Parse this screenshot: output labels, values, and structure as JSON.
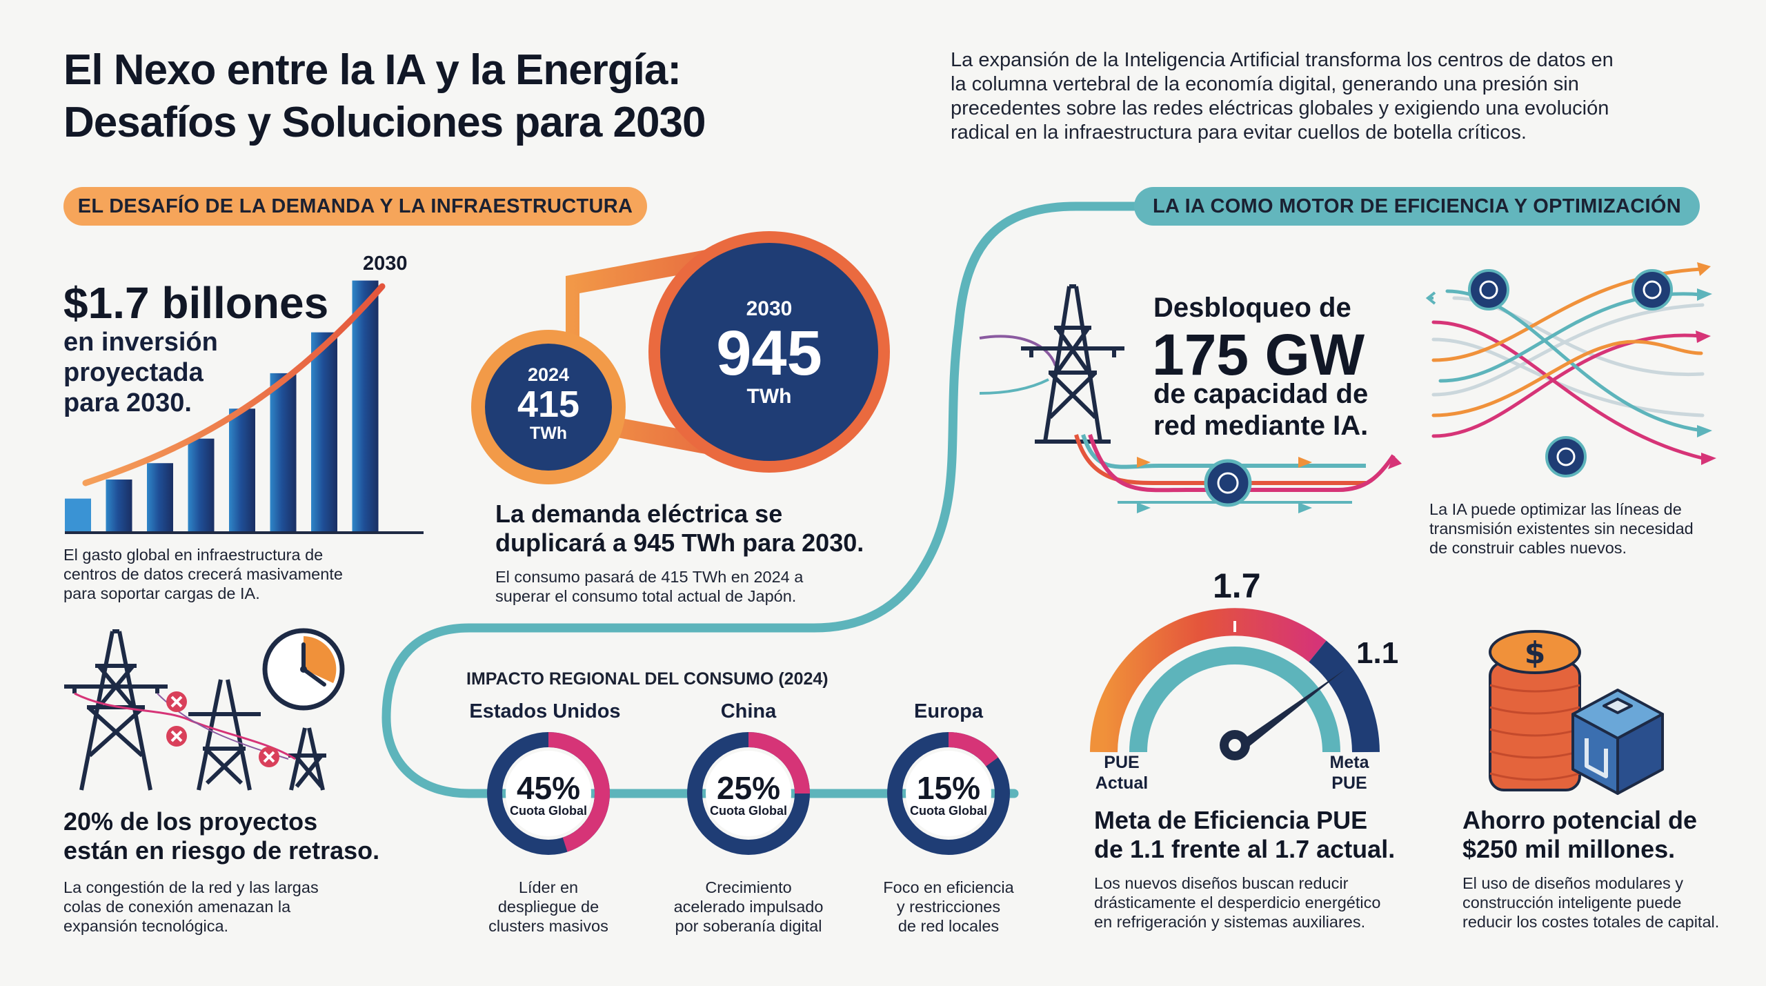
{
  "header": {
    "title_line1": "El Nexo entre la IA y la Energía:",
    "title_line2": "Desafíos y Soluciones para 2030",
    "intro_line1": "La expansión de la Inteligencia Artificial transforma los centros de datos en",
    "intro_line2": "la columna vertebral de la economía digital, generando una presión sin",
    "intro_line3": "precedentes sobre las redes eléctricas globales y exigiendo una evolución",
    "intro_line4": "radical en la infraestructura para evitar cuellos de botella críticos."
  },
  "sections": {
    "demand": "EL DESAFÍO DE LA DEMANDA Y LA INFRAESTRUCTURA",
    "efficiency": "LA IA COMO MOTOR DE EFICIENCIA Y OPTIMIZACIÓN"
  },
  "investment": {
    "year_label": "2030",
    "headline": "$1.7 billones",
    "sub_line1": "en inversión",
    "sub_line2": "proyectada",
    "sub_line3": "para 2030.",
    "desc_line1": "El gasto global en infraestructura de",
    "desc_line2": "centros de datos crecerá masivamente",
    "desc_line3": "para soportar cargas de IA.",
    "bars": [
      0.12,
      0.19,
      0.25,
      0.34,
      0.45,
      0.58,
      0.73,
      0.92
    ]
  },
  "demand": {
    "small_year": "2024",
    "small_value": "415",
    "small_unit": "TWh",
    "big_year": "2030",
    "big_value": "945",
    "big_unit": "TWh",
    "headline_line1": "La demanda eléctrica se",
    "headline_line2": "duplicará a 945 TWh para 2030.",
    "desc_line1": "El consumo pasará de 415 TWh en 2024 a",
    "desc_line2": "superar el consumo total actual de Japón."
  },
  "delays": {
    "headline_line1": "20% de los proyectos",
    "headline_line2": "están en riesgo de retraso.",
    "desc_line1": "La congestión de la red y las largas",
    "desc_line2": "colas de conexión amenazan la",
    "desc_line3": "expansión tecnológica."
  },
  "regional": {
    "title": "IMPACTO REGIONAL DEL CONSUMO (2024)",
    "share_label": "Cuota Global",
    "regions": [
      {
        "name": "Estados Unidos",
        "pct": "45%",
        "share": 0.45,
        "desc1": "Líder en",
        "desc2": "despliegue de",
        "desc3": "clusters masivos"
      },
      {
        "name": "China",
        "pct": "25%",
        "share": 0.25,
        "desc1": "Crecimiento",
        "desc2": "acelerado impulsado",
        "desc3": "por soberanía digital"
      },
      {
        "name": "Europa",
        "pct": "15%",
        "share": 0.15,
        "desc1": "Foco en eficiencia",
        "desc2": "y restricciones",
        "desc3": "de red locales"
      }
    ]
  },
  "grid": {
    "line1": "Desbloqueo de",
    "value": "175 GW",
    "line3": "de capacidad de",
    "line4": "red mediante IA.",
    "desc_line1": "La IA puede optimizar las líneas de",
    "desc_line2": "transmisión existentes sin necesidad",
    "desc_line3": "de construir cables nuevos."
  },
  "pue": {
    "current_value": "1.7",
    "target_value": "1.1",
    "label_actual_1": "PUE",
    "label_actual_2": "Actual",
    "label_target_1": "Meta",
    "label_target_2": "PUE",
    "headline_line1": "Meta de Eficiencia PUE",
    "headline_line2": "de 1.1 frente al 1.7 actual.",
    "desc_line1": "Los nuevos diseños buscan reducir",
    "desc_line2": "drásticamente el desperdicio energético",
    "desc_line3": "en refrigeración y sistemas auxiliares."
  },
  "savings": {
    "headline_line1": "Ahorro potencial de",
    "headline_line2": "$250 mil millones.",
    "desc_line1": "El uso de diseños modulares y",
    "desc_line2": "construcción inteligente puede",
    "desc_line3": "reducir los costes totales de capital."
  },
  "colors": {
    "navy": "#1f3d75",
    "orange": "#f0913a",
    "teal": "#5db4bb",
    "magenta": "#d63477",
    "red": "#d9405a"
  }
}
